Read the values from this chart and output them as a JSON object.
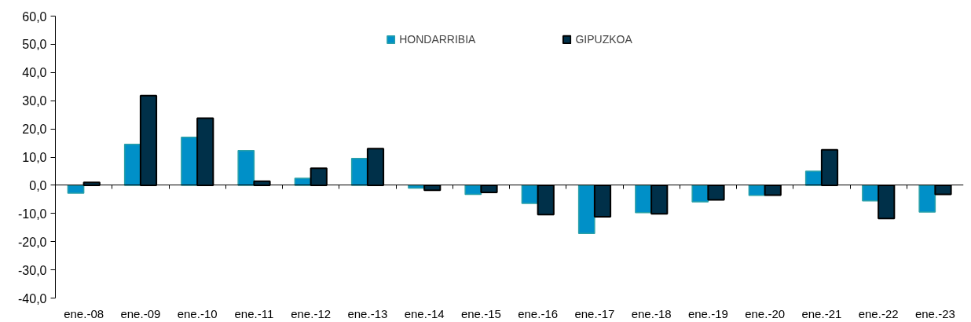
{
  "chart_data": {
    "type": "bar",
    "categories": [
      "ene.-08",
      "ene.-09",
      "ene.-10",
      "ene.-11",
      "ene.-12",
      "ene.-13",
      "ene.-14",
      "ene.-15",
      "ene.-16",
      "ene.-17",
      "ene.-18",
      "ene.-19",
      "ene.-20",
      "ene.-21",
      "ene.-22",
      "ene.-23"
    ],
    "series": [
      {
        "name": "HONDARRIBIA",
        "color": "#0090c8",
        "values": [
          -2.8,
          14.5,
          17.0,
          12.3,
          2.5,
          9.5,
          -1.0,
          -3.2,
          -6.4,
          -17.1,
          -9.7,
          -5.9,
          -3.6,
          5.0,
          -5.5,
          -9.5
        ]
      },
      {
        "name": "GIPUZKOA",
        "color": "#003049",
        "values": [
          1.0,
          31.8,
          23.8,
          1.4,
          6.0,
          13.0,
          -1.8,
          -2.5,
          -10.4,
          -11.2,
          -10.1,
          -5.2,
          -3.5,
          12.6,
          -11.8,
          -3.2
        ]
      }
    ],
    "ylim": [
      -40,
      60
    ],
    "yticks": [
      {
        "value": -40,
        "label": "-40,0"
      },
      {
        "value": -30,
        "label": "-30,0"
      },
      {
        "value": -20,
        "label": "-20,0"
      },
      {
        "value": -10,
        "label": "-10,0"
      },
      {
        "value": 0,
        "label": "0,0"
      },
      {
        "value": 10,
        "label": "10,0"
      },
      {
        "value": 20,
        "label": "20,0"
      },
      {
        "value": 30,
        "label": "30,0"
      },
      {
        "value": 40,
        "label": "40,0"
      },
      {
        "value": 50,
        "label": "50,0"
      },
      {
        "value": 60,
        "label": "60,0"
      }
    ],
    "legend": "top"
  }
}
